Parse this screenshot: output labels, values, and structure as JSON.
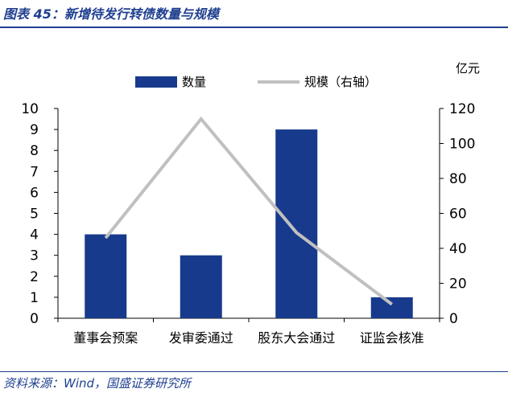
{
  "figure_title": "图表 45：新增待发行转债数量与规模",
  "source": "资料来源：Wind，国盛证券研究所",
  "colors": {
    "bar": "#173a8c",
    "line": "#c0c0c0",
    "title": "#1f3f8f",
    "axis": "#000000"
  },
  "chart_data": {
    "type": "bar",
    "categories": [
      "董事会预案",
      "发审委通过",
      "股东大会通过",
      "证监会核准"
    ],
    "series": [
      {
        "name": "数量",
        "type": "bar",
        "axis": "left",
        "values": [
          4,
          3,
          9,
          1
        ]
      },
      {
        "name": "规模（右轴）",
        "type": "line",
        "axis": "right",
        "values": [
          46,
          114,
          49,
          8
        ]
      }
    ],
    "y_left": {
      "min": 0,
      "max": 10,
      "ticks": [
        0,
        1,
        2,
        3,
        4,
        5,
        6,
        7,
        8,
        9,
        10
      ]
    },
    "y_right": {
      "min": 0,
      "max": 120,
      "ticks": [
        0,
        20,
        40,
        60,
        80,
        100,
        120
      ],
      "unit": "亿元"
    },
    "legend_position": "top",
    "grid": false
  }
}
